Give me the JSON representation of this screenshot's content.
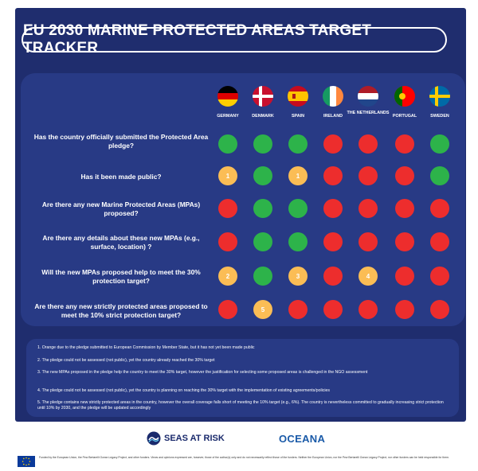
{
  "title": "EU 2030 MARINE PROTECTED AREAS TARGET TRACKER",
  "countries": [
    {
      "name": "GERMANY",
      "flag": "germany-flag-icon"
    },
    {
      "name": "DENMARK",
      "flag": "denmark-flag-icon"
    },
    {
      "name": "SPAIN",
      "flag": "spain-flag-icon"
    },
    {
      "name": "IRELAND",
      "flag": "ireland-flag-icon"
    },
    {
      "name": "THE NETHERLANDS",
      "flag": "netherlands-flag-icon"
    },
    {
      "name": "PORTUGAL",
      "flag": "portugal-flag-icon"
    },
    {
      "name": "SWEDEN",
      "flag": "sweden-flag-icon"
    }
  ],
  "questions": [
    {
      "text": "Has the country officially submitted the Protected Area pledge?",
      "answers": [
        {
          "status": "green",
          "label": ""
        },
        {
          "status": "green",
          "label": ""
        },
        {
          "status": "green",
          "label": ""
        },
        {
          "status": "red",
          "label": ""
        },
        {
          "status": "red",
          "label": ""
        },
        {
          "status": "red",
          "label": ""
        },
        {
          "status": "green",
          "label": ""
        }
      ]
    },
    {
      "text": "Has it been made public?",
      "answers": [
        {
          "status": "orange",
          "label": "1"
        },
        {
          "status": "green",
          "label": ""
        },
        {
          "status": "orange",
          "label": "1"
        },
        {
          "status": "red",
          "label": ""
        },
        {
          "status": "red",
          "label": ""
        },
        {
          "status": "red",
          "label": ""
        },
        {
          "status": "green",
          "label": ""
        }
      ]
    },
    {
      "text": "Are there any new Marine Protected Areas (MPAs) proposed?",
      "answers": [
        {
          "status": "red",
          "label": ""
        },
        {
          "status": "green",
          "label": ""
        },
        {
          "status": "green",
          "label": ""
        },
        {
          "status": "red",
          "label": ""
        },
        {
          "status": "red",
          "label": ""
        },
        {
          "status": "red",
          "label": ""
        },
        {
          "status": "red",
          "label": ""
        }
      ]
    },
    {
      "text": "Are there any details about these new MPAs (e.g., surface, location) ?",
      "answers": [
        {
          "status": "red",
          "label": ""
        },
        {
          "status": "green",
          "label": ""
        },
        {
          "status": "green",
          "label": ""
        },
        {
          "status": "red",
          "label": ""
        },
        {
          "status": "red",
          "label": ""
        },
        {
          "status": "red",
          "label": ""
        },
        {
          "status": "red",
          "label": ""
        }
      ]
    },
    {
      "text": "Will the new MPAs proposed help to meet the 30% protection target?",
      "answers": [
        {
          "status": "orange",
          "label": "2"
        },
        {
          "status": "green",
          "label": ""
        },
        {
          "status": "orange",
          "label": "3"
        },
        {
          "status": "red",
          "label": ""
        },
        {
          "status": "orange",
          "label": "4"
        },
        {
          "status": "red",
          "label": ""
        },
        {
          "status": "red",
          "label": ""
        }
      ]
    },
    {
      "text": "Are there any new strictly protected areas proposed to meet the 10% strict protection target?",
      "answers": [
        {
          "status": "red",
          "label": ""
        },
        {
          "status": "orange",
          "label": "5"
        },
        {
          "status": "red",
          "label": ""
        },
        {
          "status": "red",
          "label": ""
        },
        {
          "status": "red",
          "label": ""
        },
        {
          "status": "red",
          "label": ""
        },
        {
          "status": "red",
          "label": ""
        }
      ]
    }
  ],
  "notes": [
    "1. Orange due to the pledge submitted to European Commission by Member State, but it has not yet been made public",
    "2. The pledge could not be assessed (not public), yet the country already reached the 30% target",
    "3. The new MPAs proposed in the pledge help the country to meet the 30% target, however the justification for selecting some proposed areas is challenged in the NGO assessment",
    "4. The pledge could not be assessed (not public), yet the country is planning on reaching the 30% target with the implementation of existing agreements/policies",
    "5. The pledge contains new strictly protected areas in the country, however the overall coverage falls short of meeting the 10% target (e.g., 6%). The country is nevertheless committed to gradually increasing strict protection until 10% by 2030, and the pledge will be updated accordingly"
  ],
  "colors": {
    "green": "#2db34a",
    "red": "#ed2d2d",
    "orange": "#fbbd55",
    "background": "#1f2d6e",
    "panel": "#283a85"
  },
  "logos": {
    "seas_at_risk": "SEAS AT RISK",
    "oceana": "OCEANA"
  },
  "funding": "Funded by the European Union, the Pew Bertarelli Ocean Legacy Project, and other funders. Views and opinions expressed are, however, those of the author(s) only and do not necessarily reflect those of the funders. Neither the European Union, nor the Pew Bertarelli Ocean Legacy Project, nor other funders can be held responsible for them."
}
